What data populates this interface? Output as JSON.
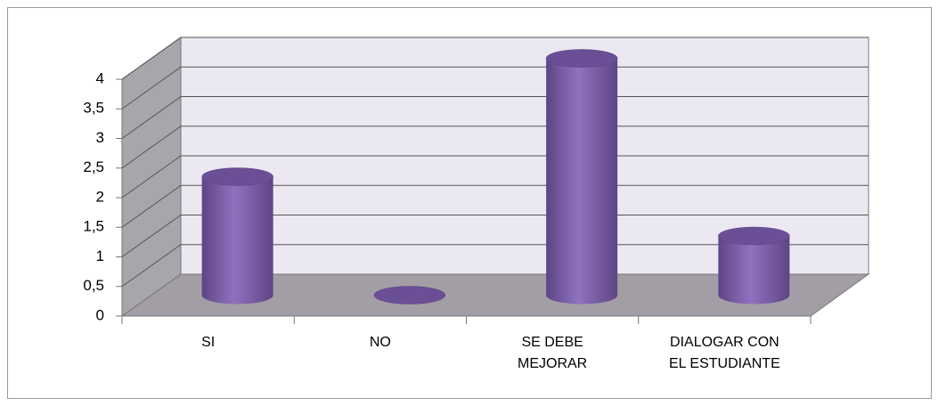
{
  "chart_data": {
    "type": "bar3d-cylinder",
    "categories": [
      "SI",
      "NO",
      "SE DEBE MEJORAR",
      "DIALOGAR CON EL ESTUDIANTE"
    ],
    "values": [
      2,
      0,
      4,
      1
    ],
    "color": "#8064a2",
    "ylim": [
      0,
      4
    ],
    "yticks": [
      0,
      {
        "value": 0.5,
        "label": "0,5"
      },
      1,
      {
        "value": 1.5,
        "label": "1,5"
      },
      2,
      {
        "value": 2.5,
        "label": "2,5"
      },
      3,
      {
        "value": 3.5,
        "label": "3,5"
      },
      4
    ],
    "grid": true
  }
}
